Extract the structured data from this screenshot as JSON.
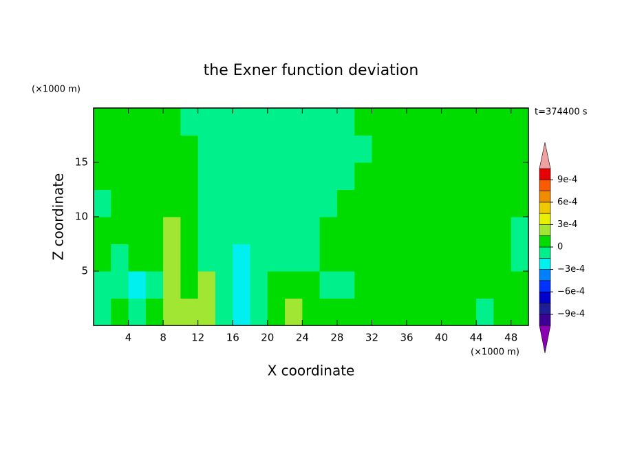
{
  "chart_data": {
    "type": "contour",
    "title": "the Exner function deviation",
    "x_label": "X coordinate",
    "y_label": "Z coordinate",
    "x_unit": "(×1000 m)",
    "y_unit": "(×1000 m)",
    "annotation": "t=374400 s",
    "xlim": [
      0,
      50
    ],
    "ylim": [
      0,
      20
    ],
    "xticks": [
      4,
      8,
      12,
      16,
      20,
      24,
      28,
      32,
      36,
      40,
      44,
      48
    ],
    "yticks": [
      5,
      10,
      15
    ],
    "x": [
      1,
      3,
      5,
      7,
      9,
      11,
      13,
      15,
      17,
      19,
      21,
      23,
      25,
      27,
      29,
      31,
      33,
      35,
      37,
      39,
      41,
      43,
      45,
      47,
      49
    ],
    "y": [
      1.25,
      3.75,
      6.25,
      8.75,
      11.25,
      13.75,
      16.25,
      18.75
    ],
    "z": [
      [
        -0.0001,
        0.0001,
        -0.0001,
        0.0001,
        0.0002,
        0.0002,
        0.0002,
        -0.0001,
        -0.0002,
        -0.0001,
        0.0001,
        0.0002,
        0.0001,
        0.0001,
        0.0001,
        0.0001,
        0.0001,
        0.0001,
        0.0001,
        0.0001,
        0.0001,
        0.0001,
        -0.0001,
        0.0001,
        0.0001
      ],
      [
        -0.0001,
        -0.0001,
        -0.0002,
        -0.0001,
        0.0002,
        0.0001,
        0.0002,
        -0.0001,
        -0.0002,
        -0.0001,
        0.0001,
        0.0001,
        0.0001,
        -0.0001,
        -0.0001,
        0.0001,
        0.0001,
        0.0001,
        0.0001,
        0.0001,
        0.0001,
        0.0001,
        0.0001,
        0.0001,
        0.0001
      ],
      [
        0.0001,
        -0.0001,
        0.0001,
        0.0001,
        0.0002,
        0.0001,
        -0.0001,
        -0.0001,
        -0.0002,
        -0.0001,
        -0.0001,
        -0.0001,
        -0.0001,
        0.0001,
        0.0001,
        0.0001,
        0.0001,
        0.0001,
        0.0001,
        0.0001,
        0.0001,
        0.0001,
        0.0001,
        0.0001,
        -0.0001
      ],
      [
        0.0001,
        0.0001,
        0.0001,
        0.0001,
        0.0002,
        0.0001,
        -0.0001,
        -0.0001,
        -0.0001,
        -0.0001,
        -0.0001,
        -0.0001,
        -0.0001,
        0.0001,
        0.0001,
        0.0001,
        0.0001,
        0.0001,
        0.0001,
        0.0001,
        0.0001,
        0.0001,
        0.0001,
        0.0001,
        -0.0001
      ],
      [
        -0.0001,
        0.0001,
        0.0001,
        0.0001,
        0.0001,
        0.0001,
        -0.0001,
        -0.0001,
        -0.0001,
        -0.0001,
        -0.0001,
        -0.0001,
        -0.0001,
        -0.0001,
        0.0001,
        0.0001,
        0.0001,
        0.0001,
        0.0001,
        0.0001,
        0.0001,
        0.0001,
        0.0001,
        0.0001,
        0.0001
      ],
      [
        0.0001,
        0.0001,
        0.0001,
        0.0001,
        0.0001,
        0.0001,
        -0.0001,
        -0.0001,
        -0.0001,
        -0.0001,
        -0.0001,
        -0.0001,
        -0.0001,
        -0.0001,
        -0.0001,
        0.0001,
        0.0001,
        0.0001,
        0.0001,
        0.0001,
        0.0001,
        0.0001,
        0.0001,
        0.0001,
        0.0001
      ],
      [
        0.0001,
        0.0001,
        0.0001,
        0.0001,
        0.0001,
        0.0001,
        -0.0001,
        -0.0001,
        -0.0001,
        -0.0001,
        -0.0001,
        -0.0001,
        -0.0001,
        -0.0001,
        -0.0001,
        -0.0001,
        0.0001,
        0.0001,
        0.0001,
        0.0001,
        0.0001,
        0.0001,
        0.0001,
        0.0001,
        0.0001
      ],
      [
        0.0001,
        0.0001,
        0.0001,
        0.0001,
        0.0001,
        -0.0001,
        -0.0001,
        -0.0001,
        -0.0001,
        -0.0001,
        -0.0001,
        -0.0001,
        -0.0001,
        -0.0001,
        -0.0001,
        0.0001,
        0.0001,
        0.0001,
        0.0001,
        0.0001,
        0.0001,
        0.0001,
        0.0001,
        0.0001,
        0.0001
      ]
    ],
    "levels": [
      -0.00105,
      -0.0009,
      -0.00075,
      -0.0006,
      -0.00045,
      -0.0003,
      -0.00015,
      0,
      0.00015,
      0.0003,
      0.00045,
      0.0006,
      0.00075,
      0.0009,
      0.00105
    ],
    "colors": [
      "#8c00b4",
      "#3c0096",
      "#1e1e96",
      "#0000c8",
      "#0032ff",
      "#0080ff",
      "#00f0f0",
      "#00f08c",
      "#00dc00",
      "#a0e632",
      "#e6f000",
      "#f0c800",
      "#f08c00",
      "#fa5a00",
      "#e60000",
      "#f0a0a0"
    ],
    "cbar_ticks": [
      {
        "value": 0.0009,
        "label": "9e-4"
      },
      {
        "value": 0.0006,
        "label": "6e-4"
      },
      {
        "value": 0.0003,
        "label": "3e-4"
      },
      0,
      {
        "value": -0.0003,
        "label": "−3e-4"
      },
      {
        "value": -0.0006,
        "label": "−6e-4"
      },
      {
        "value": -0.0009,
        "label": "−9e-4"
      }
    ]
  }
}
